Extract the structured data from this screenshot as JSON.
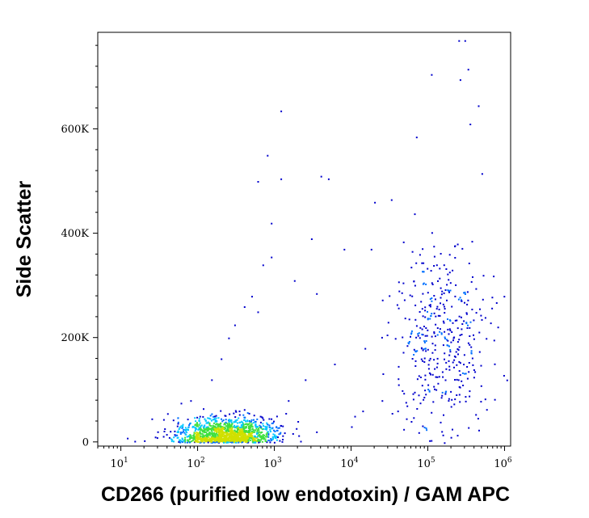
{
  "chart_data": {
    "type": "scatter",
    "title": "",
    "xlabel": "CD266 (purified low endotoxin) / GAM APC",
    "ylabel": "Side Scatter",
    "x_scale": "log",
    "xlim": [
      5,
      1200000
    ],
    "ylim": [
      -8000,
      785000
    ],
    "x_ticks": [
      {
        "value": 10,
        "base": "10",
        "exp": "1"
      },
      {
        "value": 100,
        "base": "10",
        "exp": "2"
      },
      {
        "value": 1000,
        "base": "10",
        "exp": "3"
      },
      {
        "value": 10000,
        "base": "10",
        "exp": "4"
      },
      {
        "value": 100000,
        "base": "10",
        "exp": "5"
      },
      {
        "value": 1000000,
        "base": "10",
        "exp": "6"
      }
    ],
    "y_ticks": [
      {
        "value": 0,
        "label": "0"
      },
      {
        "value": 200000,
        "label": "200K"
      },
      {
        "value": 400000,
        "label": "400K"
      },
      {
        "value": 600000,
        "label": "600K"
      }
    ],
    "density_colors": [
      "#0000cc",
      "#0070ff",
      "#00c8ff",
      "#40e040",
      "#d0e000",
      "#ff8800",
      "#ff0000"
    ],
    "populations": [
      {
        "name": "",
        "x_median": 250,
        "x_log_sd": 0.32,
        "y_median": 15000,
        "y_sd": 22000,
        "count": 1400
      },
      {
        "name": "",
        "x_median": 150000,
        "x_log_sd": 0.3,
        "y_median": 200000,
        "y_sd": 90000,
        "count": 420
      }
    ],
    "points": [
      [
        1200,
        635000
      ],
      [
        250000,
        770000
      ],
      [
        300000,
        770000
      ],
      [
        110000,
        705000
      ],
      [
        260000,
        695000
      ],
      [
        330000,
        715000
      ],
      [
        350000,
        610000
      ],
      [
        450000,
        645000
      ],
      [
        70000,
        585000
      ],
      [
        800,
        550000
      ],
      [
        4000,
        510000
      ],
      [
        5000,
        505000
      ],
      [
        1200,
        505000
      ],
      [
        20000,
        460000
      ],
      [
        33000,
        465000
      ],
      [
        600,
        500000
      ],
      [
        900,
        420000
      ],
      [
        3000,
        390000
      ],
      [
        8000,
        370000
      ],
      [
        18000,
        370000
      ],
      [
        900,
        355000
      ],
      [
        700,
        340000
      ],
      [
        1800,
        310000
      ],
      [
        3500,
        285000
      ],
      [
        500,
        280000
      ],
      [
        400,
        260000
      ],
      [
        600,
        250000
      ],
      [
        300,
        225000
      ],
      [
        250,
        200000
      ],
      [
        200,
        160000
      ],
      [
        150,
        120000
      ],
      [
        80,
        80000
      ],
      [
        60,
        75000
      ],
      [
        40,
        55000
      ],
      [
        25,
        45000
      ],
      [
        500000,
        515000
      ],
      [
        520000,
        320000
      ],
      [
        60000,
        210000
      ],
      [
        30000,
        230000
      ],
      [
        15000,
        180000
      ],
      [
        6000,
        150000
      ],
      [
        2500,
        120000
      ],
      [
        1500,
        80000
      ],
      [
        2000,
        40000
      ],
      [
        3500,
        20000
      ],
      [
        10000,
        30000
      ],
      [
        11000,
        50000
      ],
      [
        14000,
        60000
      ],
      [
        25000,
        80000
      ],
      [
        40000,
        60000
      ],
      [
        60000,
        40000
      ],
      [
        130,
        5000
      ],
      [
        15,
        2000
      ],
      [
        12,
        8000
      ],
      [
        20,
        3000
      ]
    ]
  }
}
